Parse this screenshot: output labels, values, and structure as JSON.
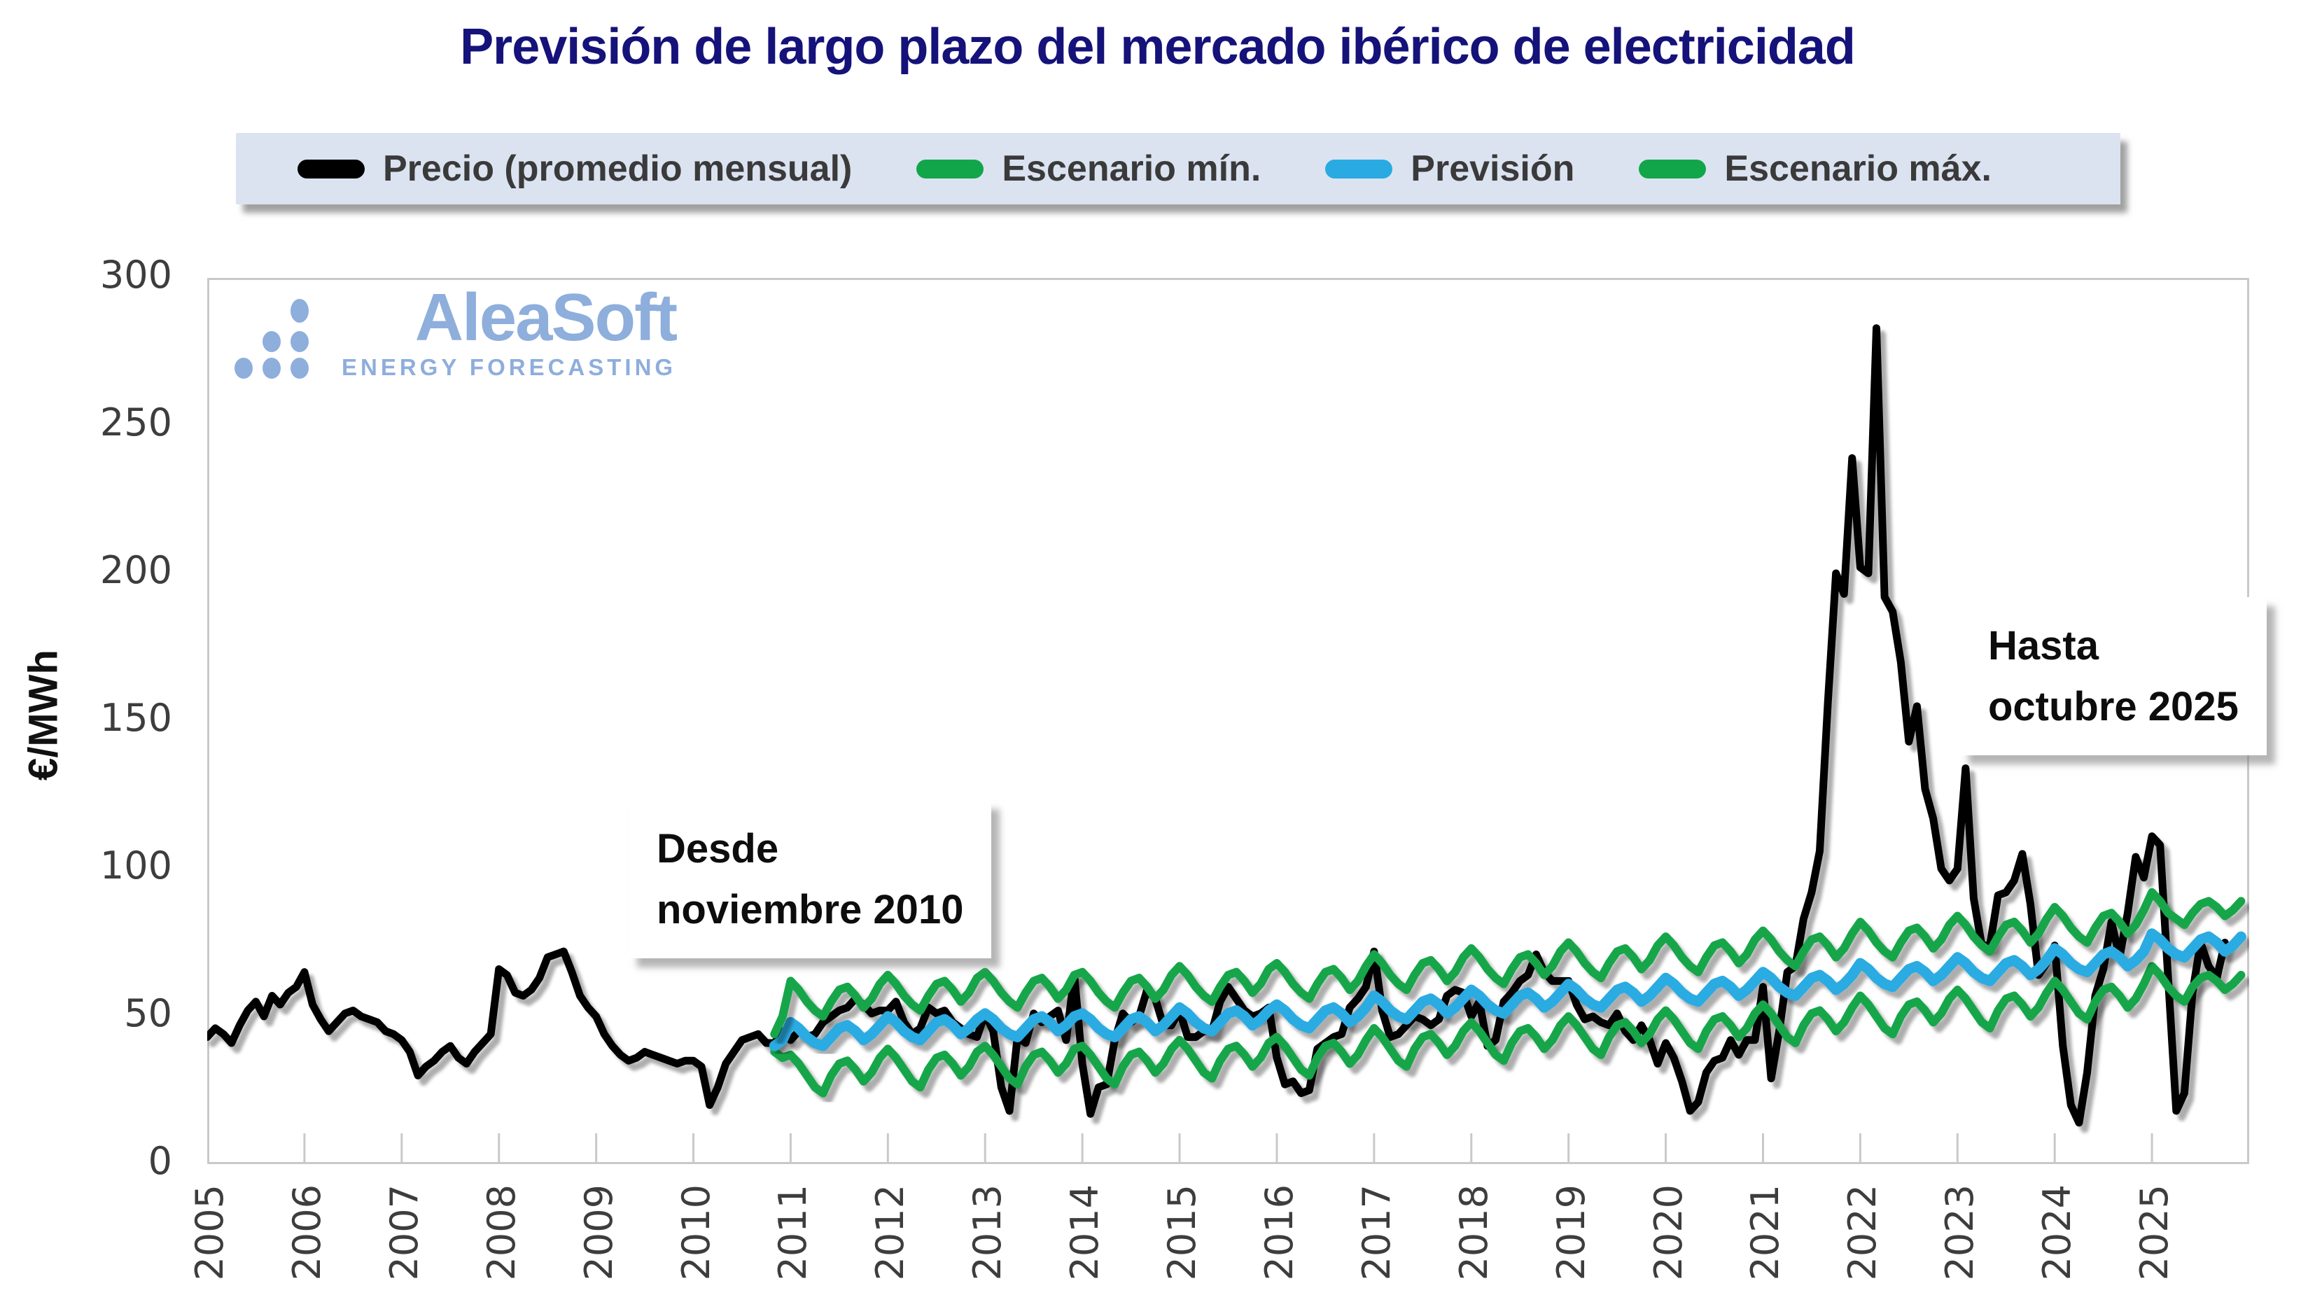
{
  "title": "Previsión de largo plazo del mercado ibérico de electricidad",
  "colors": {
    "title": "#15127A",
    "price_line": "#000000",
    "scenario_line": "#12A64A",
    "forecast_line": "#29ABE2",
    "legend_background": "#DBE3F1",
    "legend_text": "#3A3A3A",
    "axis_text": "#3D3D3D",
    "plot_border": "#C9C9C9",
    "logo_blue": "#8EAEDC"
  },
  "legend": {
    "items": [
      {
        "label": "Precio (promedio mensual)",
        "color": "#000000"
      },
      {
        "label": "Escenario mín.",
        "color": "#12A64A"
      },
      {
        "label": "Previsión",
        "color": "#29ABE2"
      },
      {
        "label": "Escenario máx.",
        "color": "#12A64A"
      }
    ]
  },
  "y_axis": {
    "label": "€/MWh",
    "ticks": [
      0,
      50,
      100,
      150,
      200,
      250,
      300
    ]
  },
  "x_axis": {
    "ticks": [
      2005,
      2006,
      2007,
      2008,
      2009,
      2010,
      2011,
      2012,
      2013,
      2014,
      2015,
      2016,
      2017,
      2018,
      2019,
      2020,
      2021,
      2022,
      2023,
      2024,
      2025
    ]
  },
  "annotations": {
    "desde": {
      "line1": "Desde",
      "line2": "noviembre 2010"
    },
    "hasta": {
      "line1": "Hasta",
      "line2": "octubre 2025"
    }
  },
  "watermark": {
    "brand": "AleaSoft",
    "tagline": "ENERGY FORECASTING"
  },
  "chart_data": {
    "type": "line",
    "title": "Previsión de largo plazo del mercado ibérico de electricidad",
    "ylabel": "€/MWh",
    "ylim": [
      0,
      300
    ],
    "xlim": [
      2005,
      2026
    ],
    "x_unit": "months",
    "grid": false,
    "legend_position": "top",
    "notes": [
      "Forecast series start November 2010",
      "Price series ends October 2025"
    ],
    "series": [
      {
        "id": "precio",
        "name": "Precio (promedio mensual)",
        "color": "#000000",
        "width": 11,
        "start_year": 2005,
        "start_month": 1,
        "monthly_values": [
          43,
          46,
          44,
          41,
          47,
          52,
          55,
          50,
          57,
          54,
          58,
          60,
          65,
          54,
          49,
          45,
          48,
          51,
          52,
          50,
          49,
          48,
          45,
          44,
          42,
          38,
          30,
          33,
          35,
          38,
          40,
          36,
          34,
          38,
          41,
          44,
          66,
          64,
          58,
          57,
          59,
          63,
          70,
          71,
          72,
          65,
          57,
          53,
          50,
          44,
          40,
          37,
          35,
          36,
          38,
          37,
          36,
          35,
          34,
          35,
          35,
          33,
          20,
          26,
          34,
          38,
          42,
          43,
          44,
          41,
          41,
          45,
          42,
          45,
          43,
          44,
          48,
          50,
          52,
          53,
          56,
          54,
          51,
          52,
          52,
          55,
          48,
          44,
          46,
          53,
          51,
          52,
          48,
          46,
          44,
          43,
          51,
          45,
          26,
          18,
          43,
          41,
          51,
          48,
          50,
          52,
          42,
          64,
          34,
          17,
          26,
          27,
          42,
          51,
          48,
          50,
          59,
          56,
          47,
          47,
          52,
          43,
          43,
          45,
          45,
          55,
          60,
          56,
          52,
          50,
          51,
          53,
          36,
          27,
          28,
          24,
          25,
          39,
          41,
          43,
          44,
          53,
          56,
          60,
          72,
          52,
          43,
          44,
          47,
          50,
          49,
          47,
          49,
          57,
          59,
          58,
          50,
          55,
          40,
          42,
          55,
          58,
          62,
          64,
          71,
          65,
          62,
          62,
          62,
          54,
          49,
          50,
          48,
          47,
          51,
          45,
          42,
          47,
          42,
          34,
          41,
          36,
          28,
          18,
          21,
          31,
          35,
          36,
          42,
          37,
          42,
          42,
          60,
          29,
          45,
          65,
          67,
          83,
          92,
          106,
          156,
          200,
          193,
          239,
          202,
          200,
          283,
          192,
          187,
          170,
          143,
          155,
          127,
          117,
          100,
          96,
          100,
          134,
          90,
          74,
          74,
          91,
          92,
          96,
          105,
          88,
          64,
          68,
          74,
          40,
          20,
          14,
          31,
          57,
          66,
          82,
          70,
          85,
          104,
          97,
          111,
          108,
          63,
          18,
          24,
          58,
          75,
          67,
          63,
          75
        ]
      },
      {
        "id": "escenario-min",
        "name": "Escenario mín.",
        "color": "#12A64A",
        "width": 12,
        "start_year": 2010,
        "start_month": 11,
        "monthly_values": [
          38,
          36,
          37,
          34,
          30,
          26,
          24,
          30,
          34,
          35,
          32,
          28,
          31,
          36,
          39,
          36,
          32,
          28,
          26,
          32,
          36,
          37,
          34,
          30,
          33,
          38,
          40,
          37,
          33,
          29,
          27,
          33,
          37,
          38,
          35,
          31,
          34,
          39,
          40,
          37,
          33,
          29,
          27,
          33,
          37,
          38,
          35,
          31,
          34,
          39,
          42,
          39,
          35,
          31,
          29,
          35,
          39,
          40,
          37,
          33,
          36,
          41,
          43,
          40,
          36,
          32,
          30,
          36,
          40,
          41,
          38,
          34,
          37,
          42,
          46,
          43,
          39,
          35,
          33,
          39,
          43,
          44,
          41,
          37,
          40,
          45,
          48,
          45,
          41,
          37,
          35,
          41,
          45,
          46,
          43,
          39,
          42,
          47,
          50,
          47,
          43,
          39,
          37,
          43,
          47,
          48,
          45,
          41,
          44,
          49,
          52,
          49,
          45,
          41,
          39,
          45,
          49,
          50,
          47,
          43,
          46,
          51,
          54,
          51,
          47,
          43,
          41,
          47,
          51,
          52,
          49,
          45,
          48,
          53,
          57,
          54,
          50,
          46,
          44,
          50,
          54,
          55,
          52,
          48,
          51,
          56,
          59,
          56,
          52,
          48,
          46,
          52,
          56,
          57,
          54,
          50,
          53,
          58,
          62,
          59,
          55,
          51,
          49,
          55,
          59,
          60,
          57,
          53,
          56,
          61,
          67,
          64,
          60,
          57,
          55,
          60,
          63,
          64,
          62,
          59,
          61,
          64
        ]
      },
      {
        "id": "prevision",
        "name": "Previsión",
        "color": "#29ABE2",
        "width": 15,
        "start_year": 2010,
        "start_month": 11,
        "monthly_values": [
          40,
          42,
          48,
          46,
          43,
          41,
          40,
          43,
          46,
          47,
          45,
          42,
          44,
          47,
          50,
          48,
          45,
          43,
          42,
          45,
          48,
          49,
          47,
          44,
          46,
          49,
          51,
          49,
          46,
          44,
          43,
          46,
          49,
          50,
          48,
          45,
          47,
          50,
          51,
          49,
          46,
          44,
          43,
          46,
          49,
          50,
          48,
          45,
          47,
          50,
          53,
          51,
          48,
          46,
          45,
          48,
          51,
          52,
          50,
          47,
          49,
          52,
          54,
          52,
          49,
          47,
          46,
          49,
          52,
          53,
          51,
          48,
          50,
          53,
          57,
          55,
          52,
          50,
          49,
          52,
          55,
          56,
          54,
          51,
          53,
          56,
          59,
          57,
          54,
          52,
          51,
          54,
          57,
          58,
          56,
          53,
          55,
          58,
          61,
          59,
          56,
          54,
          53,
          56,
          59,
          60,
          58,
          55,
          57,
          60,
          63,
          61,
          58,
          56,
          55,
          58,
          61,
          62,
          60,
          57,
          59,
          62,
          65,
          63,
          60,
          58,
          57,
          60,
          63,
          64,
          62,
          59,
          61,
          64,
          68,
          66,
          63,
          61,
          60,
          63,
          66,
          67,
          65,
          62,
          64,
          67,
          70,
          68,
          65,
          63,
          62,
          65,
          68,
          69,
          67,
          64,
          66,
          69,
          73,
          71,
          68,
          66,
          65,
          68,
          71,
          72,
          70,
          67,
          69,
          72,
          78,
          76,
          73,
          71,
          70,
          73,
          76,
          77,
          75,
          72,
          74,
          77
        ]
      },
      {
        "id": "escenario-max",
        "name": "Escenario máx.",
        "color": "#12A64A",
        "width": 12,
        "start_year": 2010,
        "start_month": 11,
        "monthly_values": [
          44,
          50,
          62,
          59,
          55,
          52,
          50,
          55,
          59,
          60,
          57,
          53,
          56,
          61,
          64,
          61,
          57,
          54,
          52,
          57,
          61,
          62,
          59,
          55,
          58,
          63,
          65,
          62,
          58,
          55,
          53,
          58,
          62,
          63,
          60,
          56,
          59,
          64,
          65,
          62,
          58,
          55,
          53,
          58,
          62,
          63,
          60,
          56,
          59,
          64,
          67,
          64,
          60,
          57,
          55,
          60,
          64,
          65,
          62,
          58,
          61,
          66,
          68,
          65,
          61,
          58,
          56,
          61,
          65,
          66,
          63,
          59,
          62,
          67,
          71,
          68,
          64,
          61,
          59,
          64,
          68,
          69,
          66,
          62,
          65,
          70,
          73,
          70,
          66,
          63,
          61,
          66,
          70,
          71,
          68,
          64,
          67,
          72,
          75,
          72,
          68,
          65,
          63,
          68,
          72,
          73,
          70,
          66,
          69,
          74,
          77,
          74,
          70,
          67,
          65,
          70,
          74,
          75,
          72,
          68,
          71,
          76,
          79,
          76,
          72,
          69,
          67,
          72,
          76,
          77,
          74,
          70,
          73,
          78,
          82,
          79,
          75,
          72,
          70,
          75,
          79,
          80,
          77,
          73,
          76,
          81,
          84,
          81,
          77,
          74,
          72,
          77,
          81,
          82,
          79,
          75,
          78,
          83,
          87,
          84,
          80,
          77,
          75,
          80,
          84,
          85,
          82,
          78,
          81,
          86,
          92,
          89,
          85,
          83,
          81,
          85,
          88,
          89,
          87,
          84,
          86,
          89
        ]
      }
    ]
  }
}
